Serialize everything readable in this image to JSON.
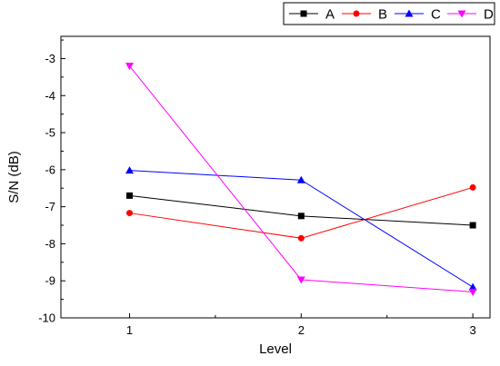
{
  "chart_data": {
    "type": "line",
    "x": [
      1,
      2,
      3
    ],
    "xlabel": "Level",
    "ylabel": "S/N (dB)",
    "xlim": [
      0.6,
      3.1
    ],
    "ylim": [
      -10,
      -2.4
    ],
    "x_ticks": [
      1,
      2,
      3
    ],
    "y_ticks": [
      -10,
      -9,
      -8,
      -7,
      -6,
      -5,
      -4,
      -3
    ],
    "grid": false,
    "legend_position": "top-right",
    "series": [
      {
        "name": "A",
        "values": [
          -6.7,
          -7.25,
          -7.5
        ],
        "color": "#000000",
        "marker": "square"
      },
      {
        "name": "B",
        "values": [
          -7.17,
          -7.85,
          -6.48
        ],
        "color": "#ff0000",
        "marker": "circle"
      },
      {
        "name": "C",
        "values": [
          -6.02,
          -6.28,
          -9.17
        ],
        "color": "#0000ff",
        "marker": "triangle-up"
      },
      {
        "name": "D",
        "values": [
          -3.2,
          -8.97,
          -9.3
        ],
        "color": "#ff00ff",
        "marker": "triangle-down"
      }
    ]
  }
}
